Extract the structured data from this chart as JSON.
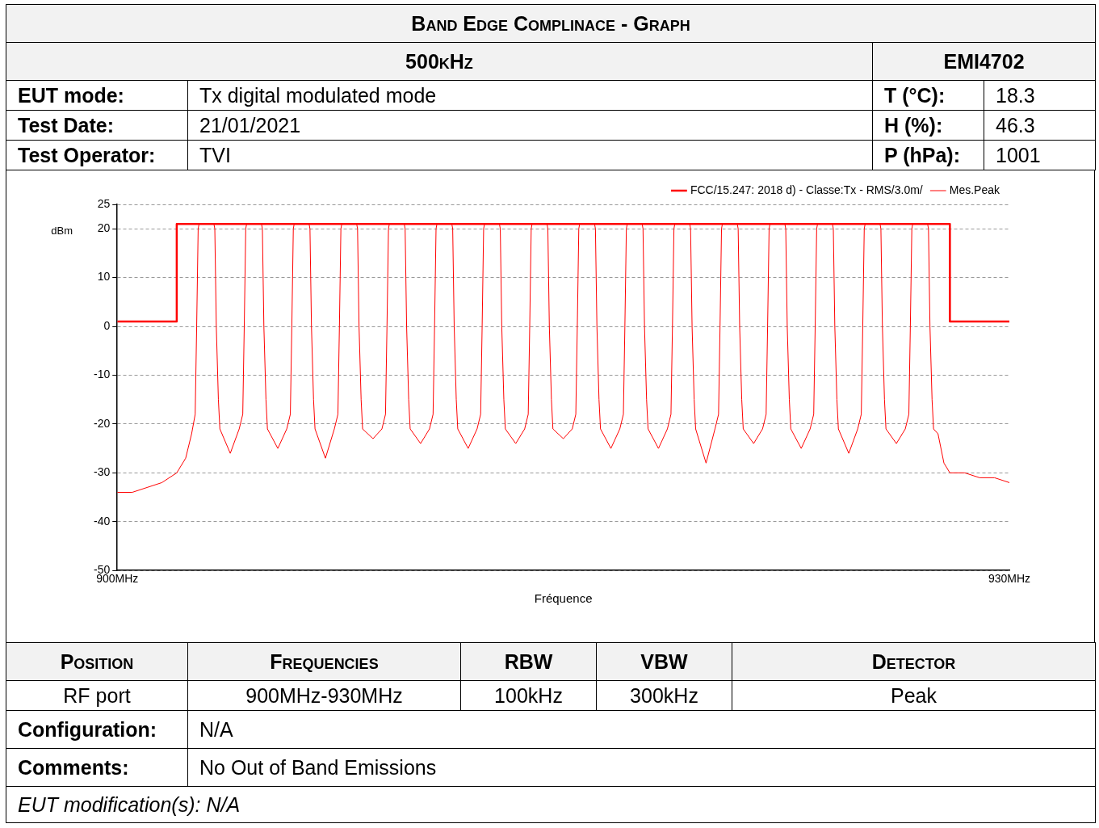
{
  "chart_data": {
    "type": "line",
    "title": "Band Edge Complinace - Graph",
    "subtitle": "500kHz",
    "xlabel": "Fréquence",
    "ylabel": "dBm",
    "annotations": [
      "EMI4702",
      "EUT mode:",
      "Tx digital modulated mode",
      "T (°C):",
      "18.3",
      "Test Date:",
      "21/01/2021",
      "H (%):",
      "46.3",
      "Test Operator:",
      "TVI",
      "P (hPa):",
      "1001",
      "Position",
      "Frequencies",
      "RBW",
      "VBW",
      "Detector",
      "RF port",
      "900MHz-930MHz",
      "100kHz",
      "300kHz",
      "Peak",
      "Configuration:",
      "N/A",
      "Comments:",
      "No Out of Band Emissions",
      "EUT modification(s): N/A"
    ],
    "xlim": [
      900,
      930
    ],
    "xticks": [
      {
        "value": 900,
        "label": "900MHz"
      },
      {
        "value": 930,
        "label": "930MHz"
      }
    ],
    "ylim": [
      -50,
      25
    ],
    "yticks": [
      -50,
      -40,
      -30,
      -20,
      -10,
      0,
      10,
      20,
      25
    ],
    "grid": "y",
    "legend": "top right",
    "marker": "none",
    "series": [
      {
        "name": "FCC/15.247: 2018 d) - Classe:Tx - RMS/3.0m/",
        "color": "#ff0000",
        "x": [
          900,
          902,
          902,
          928,
          928,
          930
        ],
        "values": [
          1,
          1,
          21,
          21,
          1,
          1
        ]
      },
      {
        "name": "Mes.Peak",
        "color": "#ff0000",
        "x": [
          900.0,
          900.5,
          901.0,
          901.5,
          902.0,
          902.3,
          902.5,
          902.62,
          902.67,
          902.72,
          902.75,
          903.25,
          903.28,
          903.33,
          903.4,
          903.45,
          903.8,
          904.1,
          904.22,
          904.27,
          904.32,
          904.35,
          904.85,
          904.88,
          904.93,
          905.0,
          905.05,
          905.4,
          905.7,
          905.82,
          905.87,
          905.92,
          905.95,
          906.45,
          906.48,
          906.53,
          906.6,
          906.65,
          907.0,
          907.3,
          907.42,
          907.47,
          907.52,
          907.55,
          908.05,
          908.08,
          908.13,
          908.2,
          908.25,
          908.6,
          908.9,
          909.02,
          909.07,
          909.12,
          909.15,
          909.65,
          909.68,
          909.73,
          909.8,
          909.85,
          910.2,
          910.5,
          910.62,
          910.67,
          910.72,
          910.75,
          911.25,
          911.28,
          911.33,
          911.4,
          911.45,
          911.8,
          912.1,
          912.22,
          912.27,
          912.32,
          912.35,
          912.85,
          912.88,
          912.93,
          913.0,
          913.05,
          913.4,
          913.7,
          913.82,
          913.87,
          913.92,
          913.95,
          914.45,
          914.48,
          914.53,
          914.6,
          914.65,
          915.0,
          915.3,
          915.42,
          915.47,
          915.52,
          915.55,
          916.05,
          916.08,
          916.13,
          916.2,
          916.25,
          916.6,
          916.9,
          917.02,
          917.07,
          917.12,
          917.15,
          917.65,
          917.68,
          917.73,
          917.8,
          917.85,
          918.2,
          918.5,
          918.62,
          918.67,
          918.72,
          918.75,
          919.25,
          919.28,
          919.33,
          919.4,
          919.45,
          919.8,
          920.1,
          920.22,
          920.27,
          920.32,
          920.35,
          920.85,
          920.88,
          920.93,
          921.0,
          921.05,
          921.4,
          921.7,
          921.82,
          921.87,
          921.92,
          921.95,
          922.45,
          922.48,
          922.53,
          922.6,
          922.65,
          923.0,
          923.3,
          923.42,
          923.47,
          923.52,
          923.55,
          924.05,
          924.08,
          924.13,
          924.2,
          924.25,
          924.6,
          924.9,
          925.02,
          925.07,
          925.12,
          925.15,
          925.65,
          925.68,
          925.73,
          925.8,
          925.85,
          926.2,
          926.5,
          926.62,
          926.67,
          926.72,
          926.75,
          927.25,
          927.28,
          927.33,
          927.4,
          927.45,
          927.6,
          927.8,
          928.0,
          928.5,
          929.0,
          929.5,
          930.0
        ],
        "values": [
          -34,
          -34,
          -33,
          -32,
          -30,
          -27,
          -22,
          -18,
          0,
          20,
          21,
          21,
          20,
          0,
          -15,
          -21,
          -26,
          -21,
          -18,
          0,
          20,
          21,
          21,
          20,
          0,
          -15,
          -21,
          -25,
          -21,
          -18,
          0,
          20,
          21,
          21,
          20,
          0,
          -15,
          -21,
          -27,
          -21,
          -18,
          0,
          20,
          21,
          21,
          20,
          0,
          -15,
          -21,
          -23,
          -21,
          -18,
          0,
          20,
          21,
          21,
          20,
          0,
          -15,
          -21,
          -24,
          -21,
          -18,
          0,
          20,
          21,
          21,
          20,
          0,
          -15,
          -21,
          -25,
          -21,
          -18,
          0,
          20,
          21,
          21,
          20,
          0,
          -15,
          -21,
          -24,
          -21,
          -18,
          0,
          20,
          21,
          21,
          20,
          0,
          -15,
          -21,
          -23,
          -21,
          -18,
          0,
          20,
          21,
          21,
          20,
          0,
          -15,
          -21,
          -25,
          -21,
          -18,
          0,
          20,
          21,
          21,
          20,
          0,
          -15,
          -21,
          -25,
          -21,
          -18,
          0,
          20,
          21,
          21,
          20,
          0,
          -15,
          -21,
          -28,
          -21,
          -18,
          0,
          20,
          21,
          21,
          20,
          0,
          -15,
          -21,
          -24,
          -21,
          -18,
          0,
          20,
          21,
          21,
          20,
          0,
          -15,
          -21,
          -25,
          -21,
          -18,
          0,
          20,
          21,
          21,
          20,
          0,
          -15,
          -21,
          -26,
          -21,
          -18,
          0,
          20,
          21,
          21,
          20,
          0,
          -15,
          -21,
          -24,
          -21,
          -18,
          0,
          20,
          21,
          21,
          20,
          0,
          -15,
          -21,
          -22,
          -28,
          -30,
          -30,
          -31,
          -31,
          -32
        ]
      }
    ]
  }
}
